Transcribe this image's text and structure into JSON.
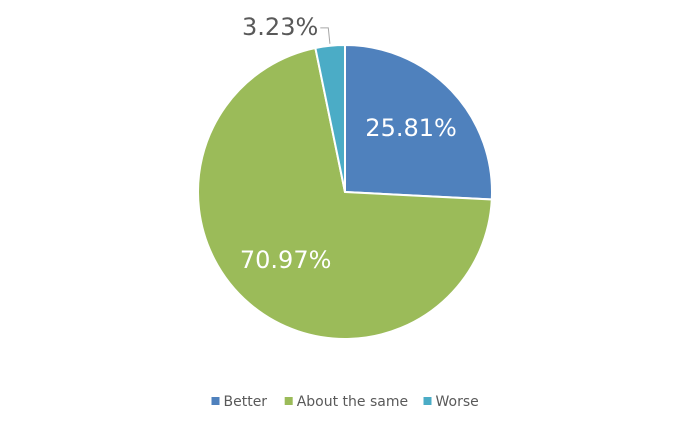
{
  "chart_data": {
    "type": "pie",
    "categories": [
      "Better",
      "About the same",
      "Worse"
    ],
    "values": [
      25.81,
      70.97,
      3.23
    ],
    "value_labels": [
      "25.81%",
      "70.97%",
      "3.23%"
    ],
    "colors": [
      "#4f81bd",
      "#9bbb59",
      "#4bacc6"
    ],
    "legend": "bottom"
  }
}
